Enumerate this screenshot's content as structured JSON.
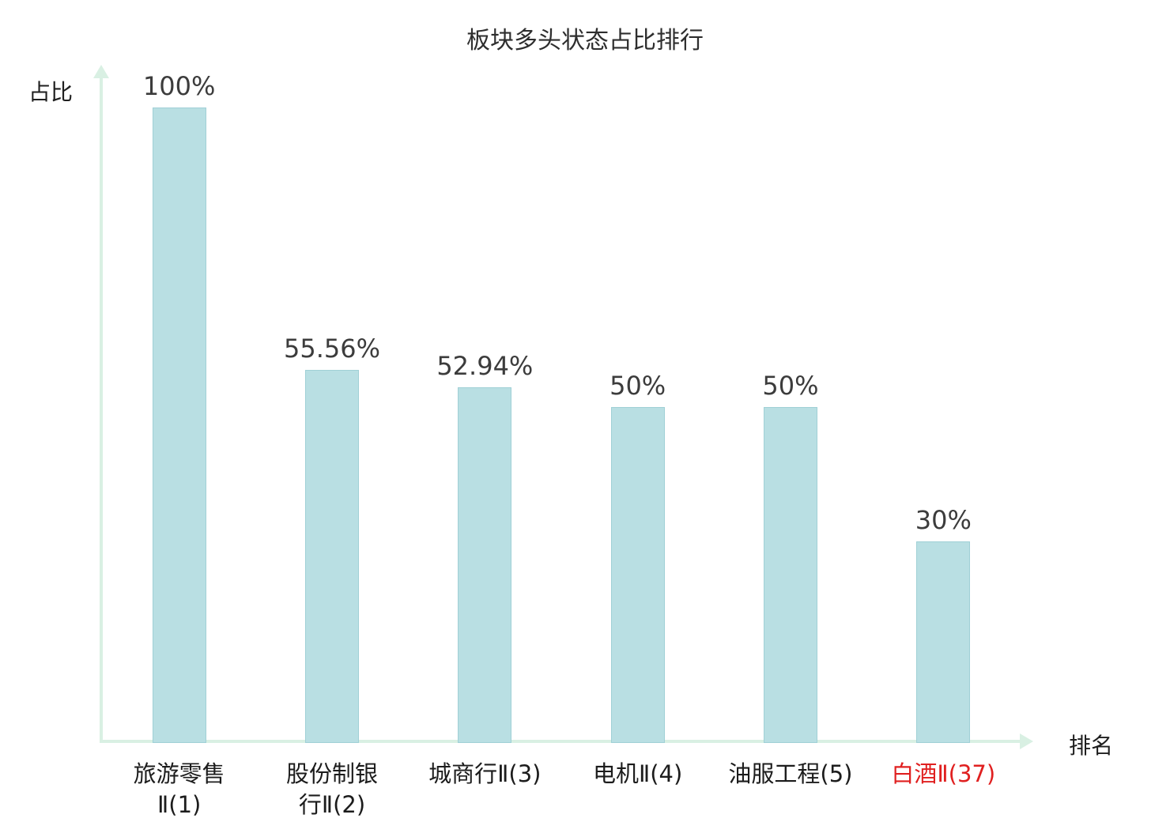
{
  "chart_data": {
    "type": "bar",
    "title": "板块多头状态占比排行",
    "xlabel": "排名",
    "ylabel": "占比",
    "categories": [
      "旅游零售Ⅱ(1)",
      "股份制银行Ⅱ(2)",
      "城商行Ⅱ(3)",
      "电机Ⅱ(4)",
      "油服工程(5)",
      "白酒Ⅱ(37)"
    ],
    "category_display": [
      "旅游零售\nⅡ(1)",
      "股份制银\n行Ⅱ(2)",
      "城商行Ⅱ(3)",
      "电机Ⅱ(4)",
      "油服工程(5)",
      "白酒Ⅱ(37)"
    ],
    "values": [
      100,
      55.56,
      52.94,
      50,
      50,
      30
    ],
    "value_labels": [
      "100%",
      "55.56%",
      "52.94%",
      "50%",
      "50%",
      "30%"
    ],
    "ylim": [
      0,
      100
    ],
    "grid": false,
    "legend": false,
    "bar_color": "#b9dfe3",
    "bar_border_color": "#a0d0d6",
    "axis_color": "#d9f0e3",
    "value_label_color": "#3c3c3c",
    "category_label_color": "#1c1c1c",
    "highlight_index": 5,
    "highlight_color": "#e02020"
  }
}
